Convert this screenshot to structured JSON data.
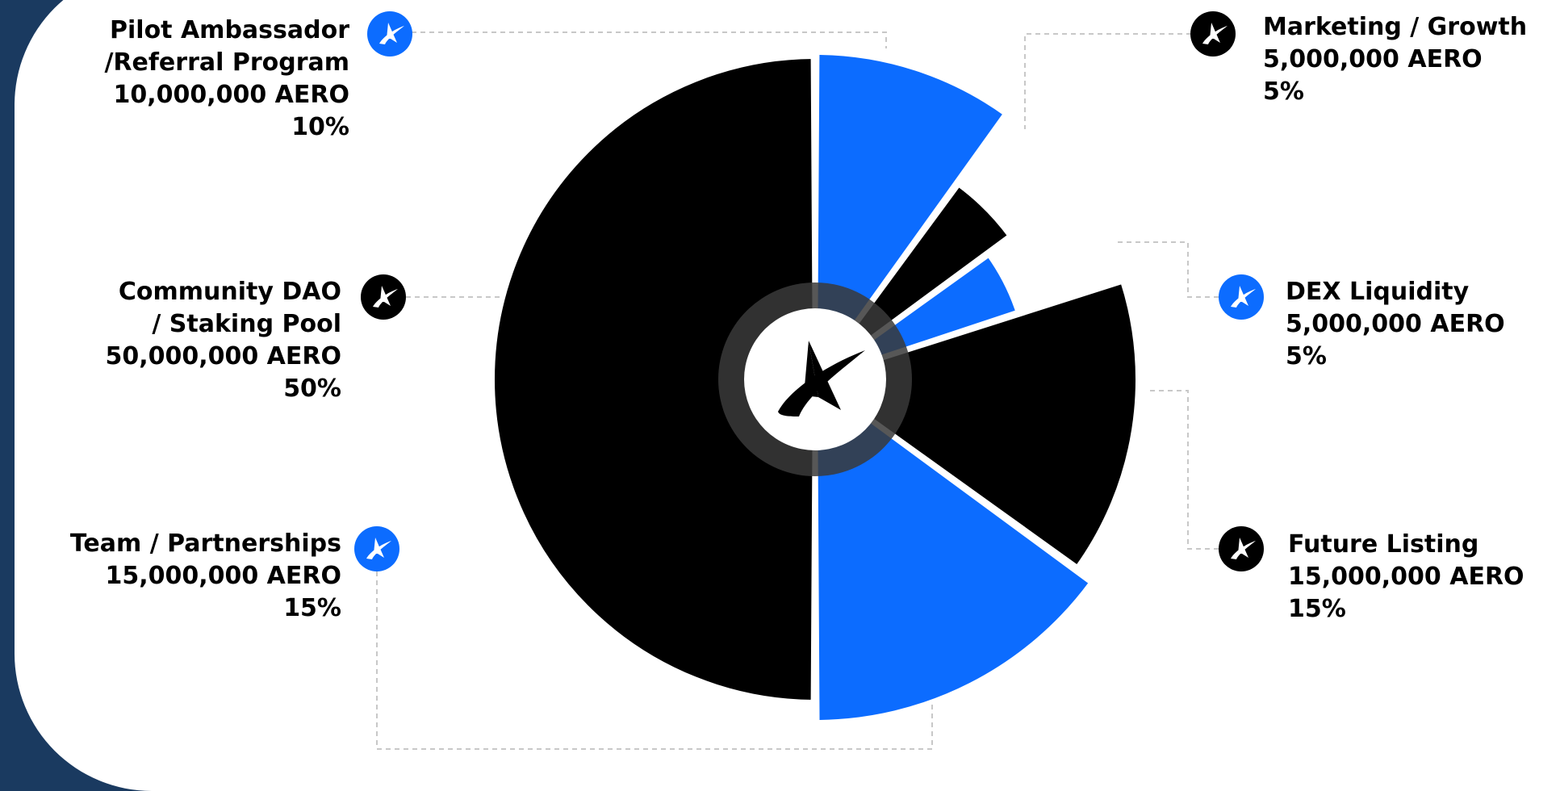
{
  "colors": {
    "blue": "#0c6cff",
    "black": "#000000",
    "navy": "#1a3a60",
    "leader": "#c8c8c8"
  },
  "center_icon": "aero-logo-icon",
  "chart_data": {
    "type": "pie",
    "unit": "AERO",
    "slices": [
      {
        "label_lines": [
          "Pilot Ambassador",
          "/Referral Program"
        ],
        "amount": "10,000,000 AERO",
        "percent_text": "10%",
        "value": 10,
        "color": "#0c6cff",
        "icon_color": "#0c6cff"
      },
      {
        "label_lines": [
          "Marketing / Growth"
        ],
        "amount": "5,000,000 AERO",
        "percent_text": "5%",
        "value": 5,
        "color": "#000000",
        "icon_color": "#000000"
      },
      {
        "label_lines": [
          "DEX Liquidity"
        ],
        "amount": "5,000,000 AERO",
        "percent_text": "5%",
        "value": 5,
        "color": "#0c6cff",
        "icon_color": "#0c6cff"
      },
      {
        "label_lines": [
          "Future Listing"
        ],
        "amount": "15,000,000 AERO",
        "percent_text": "15%",
        "value": 15,
        "color": "#000000",
        "icon_color": "#000000"
      },
      {
        "label_lines": [
          "Team / Partnerships"
        ],
        "amount": "15,000,000 AERO",
        "percent_text": "15%",
        "value": 15,
        "color": "#0c6cff",
        "icon_color": "#0c6cff"
      },
      {
        "label_lines": [
          "Community DAO",
          "/ Staking Pool"
        ],
        "amount": "50,000,000 AERO",
        "percent_text": "50%",
        "value": 50,
        "color": "#000000",
        "icon_color": "#000000"
      }
    ]
  }
}
